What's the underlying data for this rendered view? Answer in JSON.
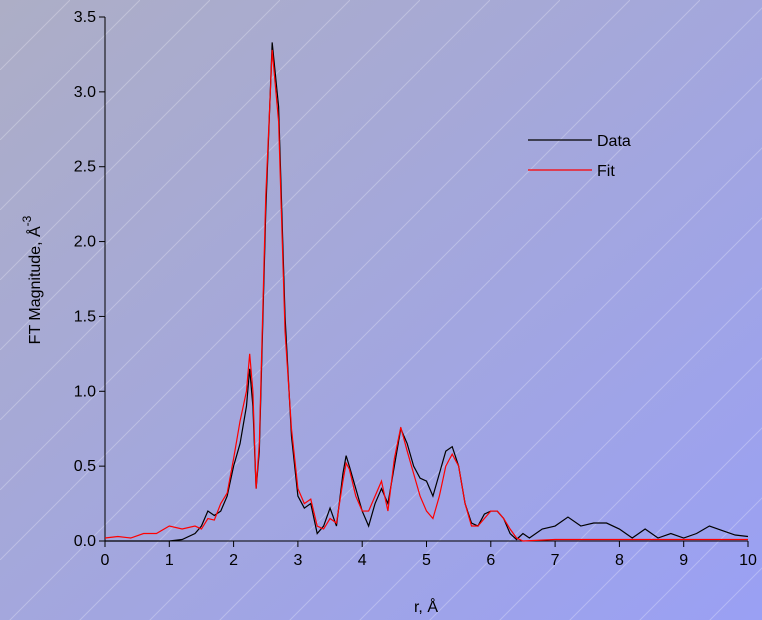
{
  "chart_data": {
    "type": "line",
    "xlabel": "r, Å",
    "ylabel": "FT Magnitude, Å",
    "ylabel_superscript": "-3",
    "xlim": [
      0,
      10
    ],
    "ylim": [
      0,
      3.5
    ],
    "xticks": [
      0,
      1,
      2,
      3,
      4,
      5,
      6,
      7,
      8,
      9,
      10
    ],
    "yticks": [
      {
        "value": 0,
        "label": "0.0"
      },
      0.5,
      {
        "value": 1,
        "label": "1.0"
      },
      1.5,
      {
        "value": 2,
        "label": "2.0"
      },
      2.5,
      {
        "value": 3,
        "label": "3.0"
      },
      3.5
    ],
    "legend": "upper right",
    "series": [
      {
        "name": "Data",
        "color": "#000000",
        "x": [
          0,
          0.2,
          0.4,
          0.6,
          0.8,
          1.0,
          1.2,
          1.4,
          1.5,
          1.6,
          1.7,
          1.8,
          1.9,
          2.0,
          2.1,
          2.2,
          2.25,
          2.3,
          2.35,
          2.4,
          2.5,
          2.6,
          2.7,
          2.8,
          2.9,
          3.0,
          3.1,
          3.2,
          3.3,
          3.4,
          3.5,
          3.6,
          3.7,
          3.75,
          3.8,
          3.9,
          4.0,
          4.1,
          4.2,
          4.3,
          4.4,
          4.5,
          4.6,
          4.7,
          4.8,
          4.9,
          5.0,
          5.1,
          5.2,
          5.3,
          5.4,
          5.5,
          5.6,
          5.7,
          5.8,
          5.9,
          6.0,
          6.1,
          6.2,
          6.3,
          6.4,
          6.5,
          6.6,
          6.8,
          7.0,
          7.2,
          7.4,
          7.6,
          7.8,
          8.0,
          8.2,
          8.4,
          8.6,
          8.8,
          9.0,
          9.2,
          9.4,
          9.6,
          9.8,
          10.0
        ],
        "values": [
          0.0,
          0.0,
          0.0,
          0.0,
          0.0,
          0.0,
          0.01,
          0.05,
          0.1,
          0.2,
          0.17,
          0.2,
          0.3,
          0.5,
          0.65,
          0.9,
          1.15,
          0.9,
          0.35,
          0.6,
          2.2,
          3.33,
          2.9,
          1.5,
          0.7,
          0.3,
          0.22,
          0.25,
          0.05,
          0.1,
          0.22,
          0.1,
          0.45,
          0.57,
          0.5,
          0.35,
          0.2,
          0.1,
          0.25,
          0.35,
          0.25,
          0.5,
          0.75,
          0.65,
          0.5,
          0.42,
          0.4,
          0.3,
          0.45,
          0.6,
          0.63,
          0.5,
          0.25,
          0.12,
          0.1,
          0.18,
          0.2,
          0.2,
          0.15,
          0.05,
          0.01,
          0.05,
          0.02,
          0.08,
          0.1,
          0.16,
          0.1,
          0.12,
          0.12,
          0.08,
          0.02,
          0.08,
          0.02,
          0.05,
          0.02,
          0.05,
          0.1,
          0.07,
          0.04,
          0.03
        ]
      },
      {
        "name": "Fit",
        "color": "#ff0000",
        "x": [
          0,
          0.2,
          0.4,
          0.6,
          0.8,
          1.0,
          1.2,
          1.4,
          1.5,
          1.6,
          1.7,
          1.8,
          1.9,
          2.0,
          2.1,
          2.2,
          2.25,
          2.3,
          2.35,
          2.4,
          2.5,
          2.6,
          2.7,
          2.8,
          2.9,
          3.0,
          3.1,
          3.2,
          3.3,
          3.4,
          3.5,
          3.6,
          3.7,
          3.75,
          3.8,
          3.9,
          4.0,
          4.1,
          4.2,
          4.3,
          4.4,
          4.5,
          4.6,
          4.7,
          4.8,
          4.9,
          5.0,
          5.1,
          5.2,
          5.3,
          5.4,
          5.5,
          5.6,
          5.7,
          5.8,
          5.9,
          6.0,
          6.1,
          6.2,
          6.3,
          6.4,
          6.5,
          7.0,
          8.0,
          9.0,
          10.0
        ],
        "values": [
          0.02,
          0.03,
          0.02,
          0.05,
          0.05,
          0.1,
          0.08,
          0.1,
          0.08,
          0.15,
          0.14,
          0.25,
          0.32,
          0.55,
          0.8,
          1.0,
          1.25,
          1.0,
          0.35,
          0.65,
          2.3,
          3.28,
          2.8,
          1.4,
          0.75,
          0.35,
          0.25,
          0.28,
          0.1,
          0.08,
          0.15,
          0.12,
          0.4,
          0.52,
          0.48,
          0.3,
          0.2,
          0.2,
          0.3,
          0.4,
          0.2,
          0.55,
          0.76,
          0.6,
          0.45,
          0.3,
          0.2,
          0.15,
          0.3,
          0.5,
          0.58,
          0.5,
          0.25,
          0.1,
          0.1,
          0.15,
          0.2,
          0.2,
          0.15,
          0.08,
          0.02,
          0.0,
          0.01,
          0.01,
          0.01,
          0.01
        ]
      }
    ]
  }
}
